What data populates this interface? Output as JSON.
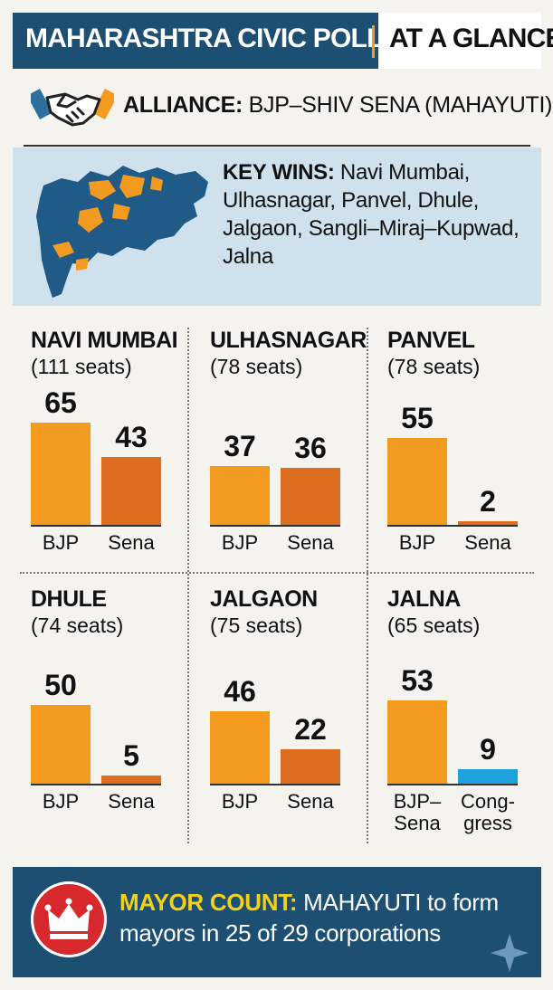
{
  "header": {
    "title_left": "MAHARASHTRA CIVIC POLLS",
    "title_right": "AT A GLANCE"
  },
  "alliance": {
    "label": "ALLIANCE:",
    "value": "BJP–SHIV SENA (MAHAYUTI)"
  },
  "key_wins": {
    "label": "KEY WINS:",
    "value": "Navi Mumbai, Ulhasnagar, Panvel, Dhule, Jalgaon, Sangli–Miraj–Kupwad, Jalna"
  },
  "footer": {
    "label": "MAYOR COUNT:",
    "value": "MAHAYUTI to form mayors in 25 of 29 corporations"
  },
  "colors": {
    "header_bg": "#1d4f73",
    "bjp": "#f39a20",
    "sena": "#dd6e20",
    "congress": "#1da2dd",
    "keywins_bg": "#cfe1ec",
    "crown_bg": "#d7282d",
    "mayor_label": "#f3d11b"
  },
  "chart_data": [
    {
      "type": "bar",
      "title": "NAVI MUMBAI",
      "subtitle": "(111 seats)",
      "categories": [
        "BJP",
        "Sena"
      ],
      "values": [
        65,
        43
      ]
    },
    {
      "type": "bar",
      "title": "ULHASNAGAR",
      "subtitle": "(78 seats)",
      "categories": [
        "BJP",
        "Sena"
      ],
      "values": [
        37,
        36
      ]
    },
    {
      "type": "bar",
      "title": "PANVEL",
      "subtitle": "(78 seats)",
      "categories": [
        "BJP",
        "Sena"
      ],
      "values": [
        55,
        2
      ]
    },
    {
      "type": "bar",
      "title": "DHULE",
      "subtitle": "(74 seats)",
      "categories": [
        "BJP",
        "Sena"
      ],
      "values": [
        50,
        5
      ]
    },
    {
      "type": "bar",
      "title": "JALGAON",
      "subtitle": "(75 seats)",
      "categories": [
        "BJP",
        "Sena"
      ],
      "values": [
        46,
        22
      ]
    },
    {
      "type": "bar",
      "title": "JALNA",
      "subtitle": "(65 seats)",
      "categories": [
        "BJP–Sena",
        "Cong-gress"
      ],
      "values": [
        53,
        9
      ]
    }
  ]
}
